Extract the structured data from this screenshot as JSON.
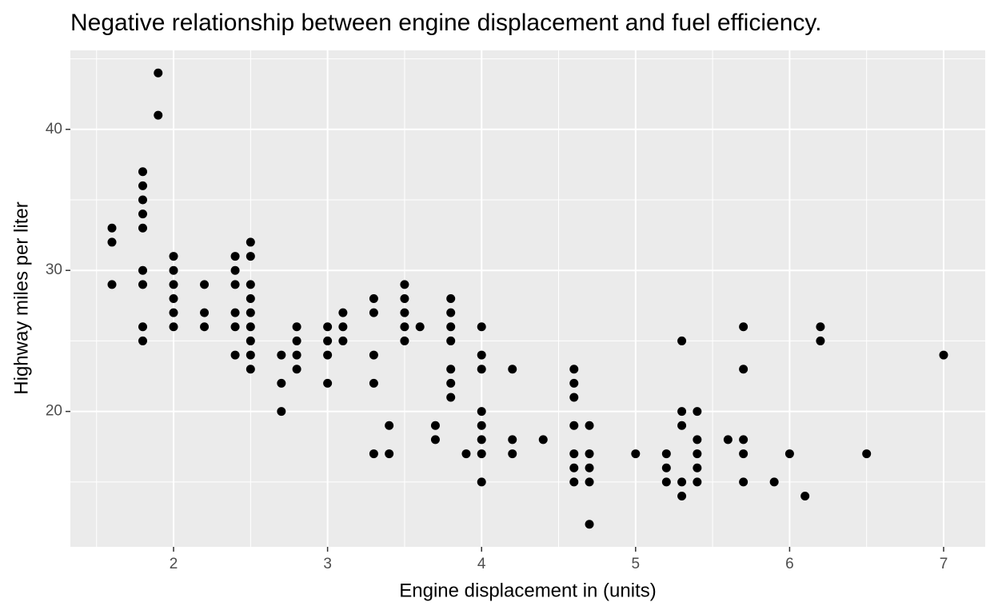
{
  "chart_data": {
    "type": "scatter",
    "title": "Negative relationship between engine displacement and fuel efficiency.",
    "x_label": "Engine displacement in (units)",
    "y_label": "Highway miles per liter",
    "x": [
      1.6,
      1.6,
      1.6,
      1.8,
      1.8,
      1.8,
      1.8,
      1.8,
      1.8,
      1.8,
      1.8,
      1.8,
      1.9,
      1.9,
      2.0,
      2.0,
      2.0,
      2.0,
      2.0,
      2.0,
      2.2,
      2.2,
      2.2,
      2.4,
      2.4,
      2.4,
      2.4,
      2.4,
      2.4,
      2.5,
      2.5,
      2.5,
      2.5,
      2.5,
      2.5,
      2.5,
      2.5,
      2.5,
      2.7,
      2.7,
      2.7,
      2.8,
      2.8,
      2.8,
      2.8,
      3.0,
      3.0,
      3.0,
      3.0,
      3.1,
      3.1,
      3.1,
      3.3,
      3.3,
      3.3,
      3.3,
      3.3,
      3.4,
      3.4,
      3.5,
      3.5,
      3.5,
      3.5,
      3.5,
      3.6,
      3.7,
      3.7,
      3.8,
      3.8,
      3.8,
      3.8,
      3.8,
      3.8,
      3.8,
      3.9,
      4.0,
      4.0,
      4.0,
      4.0,
      4.0,
      4.0,
      4.0,
      4.0,
      4.2,
      4.2,
      4.2,
      4.4,
      4.6,
      4.6,
      4.6,
      4.6,
      4.6,
      4.6,
      4.6,
      4.7,
      4.7,
      4.7,
      4.7,
      4.7,
      5.0,
      5.2,
      5.2,
      5.2,
      5.3,
      5.3,
      5.3,
      5.3,
      5.3,
      5.4,
      5.4,
      5.4,
      5.4,
      5.4,
      5.6,
      5.7,
      5.7,
      5.7,
      5.7,
      5.7,
      5.9,
      6.0,
      6.1,
      6.2,
      6.2,
      6.5,
      7.0
    ],
    "y": [
      33,
      32,
      29,
      37,
      36,
      35,
      34,
      33,
      30,
      29,
      26,
      25,
      44,
      41,
      31,
      30,
      29,
      28,
      27,
      26,
      29,
      27,
      26,
      31,
      30,
      29,
      27,
      26,
      24,
      32,
      31,
      29,
      28,
      27,
      26,
      25,
      24,
      23,
      24,
      22,
      20,
      26,
      25,
      24,
      23,
      26,
      25,
      24,
      22,
      27,
      26,
      25,
      28,
      27,
      24,
      22,
      17,
      19,
      17,
      29,
      28,
      27,
      26,
      25,
      26,
      19,
      18,
      28,
      27,
      26,
      25,
      23,
      22,
      21,
      17,
      26,
      24,
      23,
      20,
      19,
      18,
      17,
      15,
      23,
      18,
      17,
      18,
      23,
      22,
      21,
      19,
      17,
      16,
      15,
      19,
      17,
      16,
      15,
      12,
      17,
      17,
      16,
      15,
      25,
      20,
      19,
      15,
      14,
      20,
      18,
      17,
      16,
      15,
      18,
      26,
      23,
      18,
      17,
      15,
      15,
      17,
      14,
      26,
      25,
      17,
      24
    ],
    "color": "#000000",
    "xlim": [
      1.33,
      7.27
    ],
    "ylim": [
      10.4,
      45.6
    ],
    "xticks": [
      2,
      3,
      4,
      5,
      6,
      7
    ],
    "yticks": [
      20,
      30,
      40
    ],
    "x_minor_ticks": [
      1.5,
      2.5,
      3.5,
      4.5,
      5.5,
      6.5
    ],
    "y_minor_ticks": [
      15,
      25,
      35,
      45
    ],
    "grid": true
  }
}
